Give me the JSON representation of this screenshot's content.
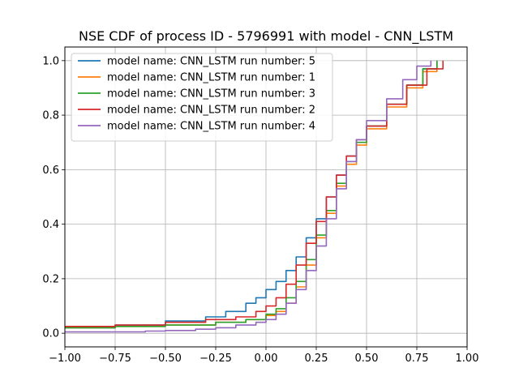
{
  "chart_data": {
    "type": "line",
    "title": "NSE CDF of process ID - 5796991 with model - CNN_LSTM",
    "xlabel": "",
    "ylabel": "",
    "xlim": [
      -1.0,
      1.0
    ],
    "ylim": [
      -0.05,
      1.05
    ],
    "x_ticks": [
      -1.0,
      -0.75,
      -0.5,
      -0.25,
      0.0,
      0.25,
      0.5,
      0.75,
      1.0
    ],
    "x_tick_labels": [
      "−1.00",
      "−0.75",
      "−0.50",
      "−0.25",
      "0.00",
      "0.25",
      "0.50",
      "0.75",
      "1.00"
    ],
    "y_ticks": [
      0.0,
      0.2,
      0.4,
      0.6,
      0.8,
      1.0
    ],
    "y_tick_labels": [
      "0.0",
      "0.2",
      "0.4",
      "0.6",
      "0.8",
      "1.0"
    ],
    "grid": true,
    "legend_position": "upper-left",
    "series": [
      {
        "name": "model name: CNN_LSTM run number: 5",
        "color": "#1f77b4",
        "points": [
          [
            -1.0,
            0.02
          ],
          [
            -0.75,
            0.03
          ],
          [
            -0.5,
            0.045
          ],
          [
            -0.3,
            0.06
          ],
          [
            -0.2,
            0.08
          ],
          [
            -0.1,
            0.11
          ],
          [
            -0.05,
            0.13
          ],
          [
            0.0,
            0.16
          ],
          [
            0.05,
            0.19
          ],
          [
            0.1,
            0.23
          ],
          [
            0.15,
            0.28
          ],
          [
            0.2,
            0.35
          ],
          [
            0.25,
            0.42
          ],
          [
            0.3,
            0.5
          ],
          [
            0.35,
            0.58
          ],
          [
            0.4,
            0.65
          ],
          [
            0.45,
            0.71
          ],
          [
            0.5,
            0.76
          ],
          [
            0.6,
            0.84
          ],
          [
            0.7,
            0.91
          ],
          [
            0.78,
            0.97
          ],
          [
            0.85,
            1.0
          ]
        ]
      },
      {
        "name": "model name: CNN_LSTM run number: 1",
        "color": "#ff7f0e",
        "points": [
          [
            -1.0,
            0.02
          ],
          [
            -0.75,
            0.025
          ],
          [
            -0.5,
            0.03
          ],
          [
            -0.25,
            0.04
          ],
          [
            -0.1,
            0.05
          ],
          [
            0.0,
            0.065
          ],
          [
            0.05,
            0.08
          ],
          [
            0.1,
            0.11
          ],
          [
            0.15,
            0.17
          ],
          [
            0.2,
            0.25
          ],
          [
            0.25,
            0.35
          ],
          [
            0.3,
            0.44
          ],
          [
            0.35,
            0.54
          ],
          [
            0.4,
            0.62
          ],
          [
            0.45,
            0.69
          ],
          [
            0.5,
            0.75
          ],
          [
            0.6,
            0.83
          ],
          [
            0.7,
            0.9
          ],
          [
            0.78,
            0.96
          ],
          [
            0.85,
            1.0
          ]
        ]
      },
      {
        "name": "model name: CNN_LSTM run number: 3",
        "color": "#2ca02c",
        "points": [
          [
            -1.0,
            0.02
          ],
          [
            -0.75,
            0.025
          ],
          [
            -0.5,
            0.03
          ],
          [
            -0.25,
            0.04
          ],
          [
            -0.1,
            0.05
          ],
          [
            0.0,
            0.07
          ],
          [
            0.05,
            0.09
          ],
          [
            0.1,
            0.13
          ],
          [
            0.15,
            0.19
          ],
          [
            0.2,
            0.27
          ],
          [
            0.25,
            0.36
          ],
          [
            0.3,
            0.45
          ],
          [
            0.35,
            0.55
          ],
          [
            0.4,
            0.63
          ],
          [
            0.45,
            0.7
          ],
          [
            0.5,
            0.76
          ],
          [
            0.6,
            0.84
          ],
          [
            0.7,
            0.91
          ],
          [
            0.78,
            0.97
          ],
          [
            0.85,
            1.0
          ]
        ]
      },
      {
        "name": "model name: CNN_LSTM run number: 2",
        "color": "#d62728",
        "points": [
          [
            -1.0,
            0.025
          ],
          [
            -0.75,
            0.03
          ],
          [
            -0.5,
            0.04
          ],
          [
            -0.3,
            0.05
          ],
          [
            -0.15,
            0.06
          ],
          [
            -0.05,
            0.08
          ],
          [
            0.0,
            0.1
          ],
          [
            0.05,
            0.13
          ],
          [
            0.1,
            0.18
          ],
          [
            0.15,
            0.25
          ],
          [
            0.2,
            0.33
          ],
          [
            0.25,
            0.41
          ],
          [
            0.3,
            0.5
          ],
          [
            0.35,
            0.58
          ],
          [
            0.4,
            0.65
          ],
          [
            0.45,
            0.71
          ],
          [
            0.5,
            0.76
          ],
          [
            0.6,
            0.84
          ],
          [
            0.7,
            0.91
          ],
          [
            0.8,
            0.97
          ],
          [
            0.88,
            1.0
          ]
        ]
      },
      {
        "name": "model name: CNN_LSTM run number: 4",
        "color": "#9467bd",
        "points": [
          [
            -1.0,
            0.005
          ],
          [
            -0.75,
            0.005
          ],
          [
            -0.6,
            0.008
          ],
          [
            -0.5,
            0.01
          ],
          [
            -0.35,
            0.015
          ],
          [
            -0.25,
            0.02
          ],
          [
            -0.15,
            0.03
          ],
          [
            -0.05,
            0.04
          ],
          [
            0.0,
            0.05
          ],
          [
            0.05,
            0.07
          ],
          [
            0.1,
            0.11
          ],
          [
            0.15,
            0.16
          ],
          [
            0.2,
            0.23
          ],
          [
            0.25,
            0.32
          ],
          [
            0.3,
            0.42
          ],
          [
            0.35,
            0.53
          ],
          [
            0.4,
            0.63
          ],
          [
            0.45,
            0.71
          ],
          [
            0.5,
            0.78
          ],
          [
            0.6,
            0.86
          ],
          [
            0.68,
            0.93
          ],
          [
            0.75,
            0.98
          ],
          [
            0.82,
            1.0
          ]
        ]
      }
    ]
  }
}
